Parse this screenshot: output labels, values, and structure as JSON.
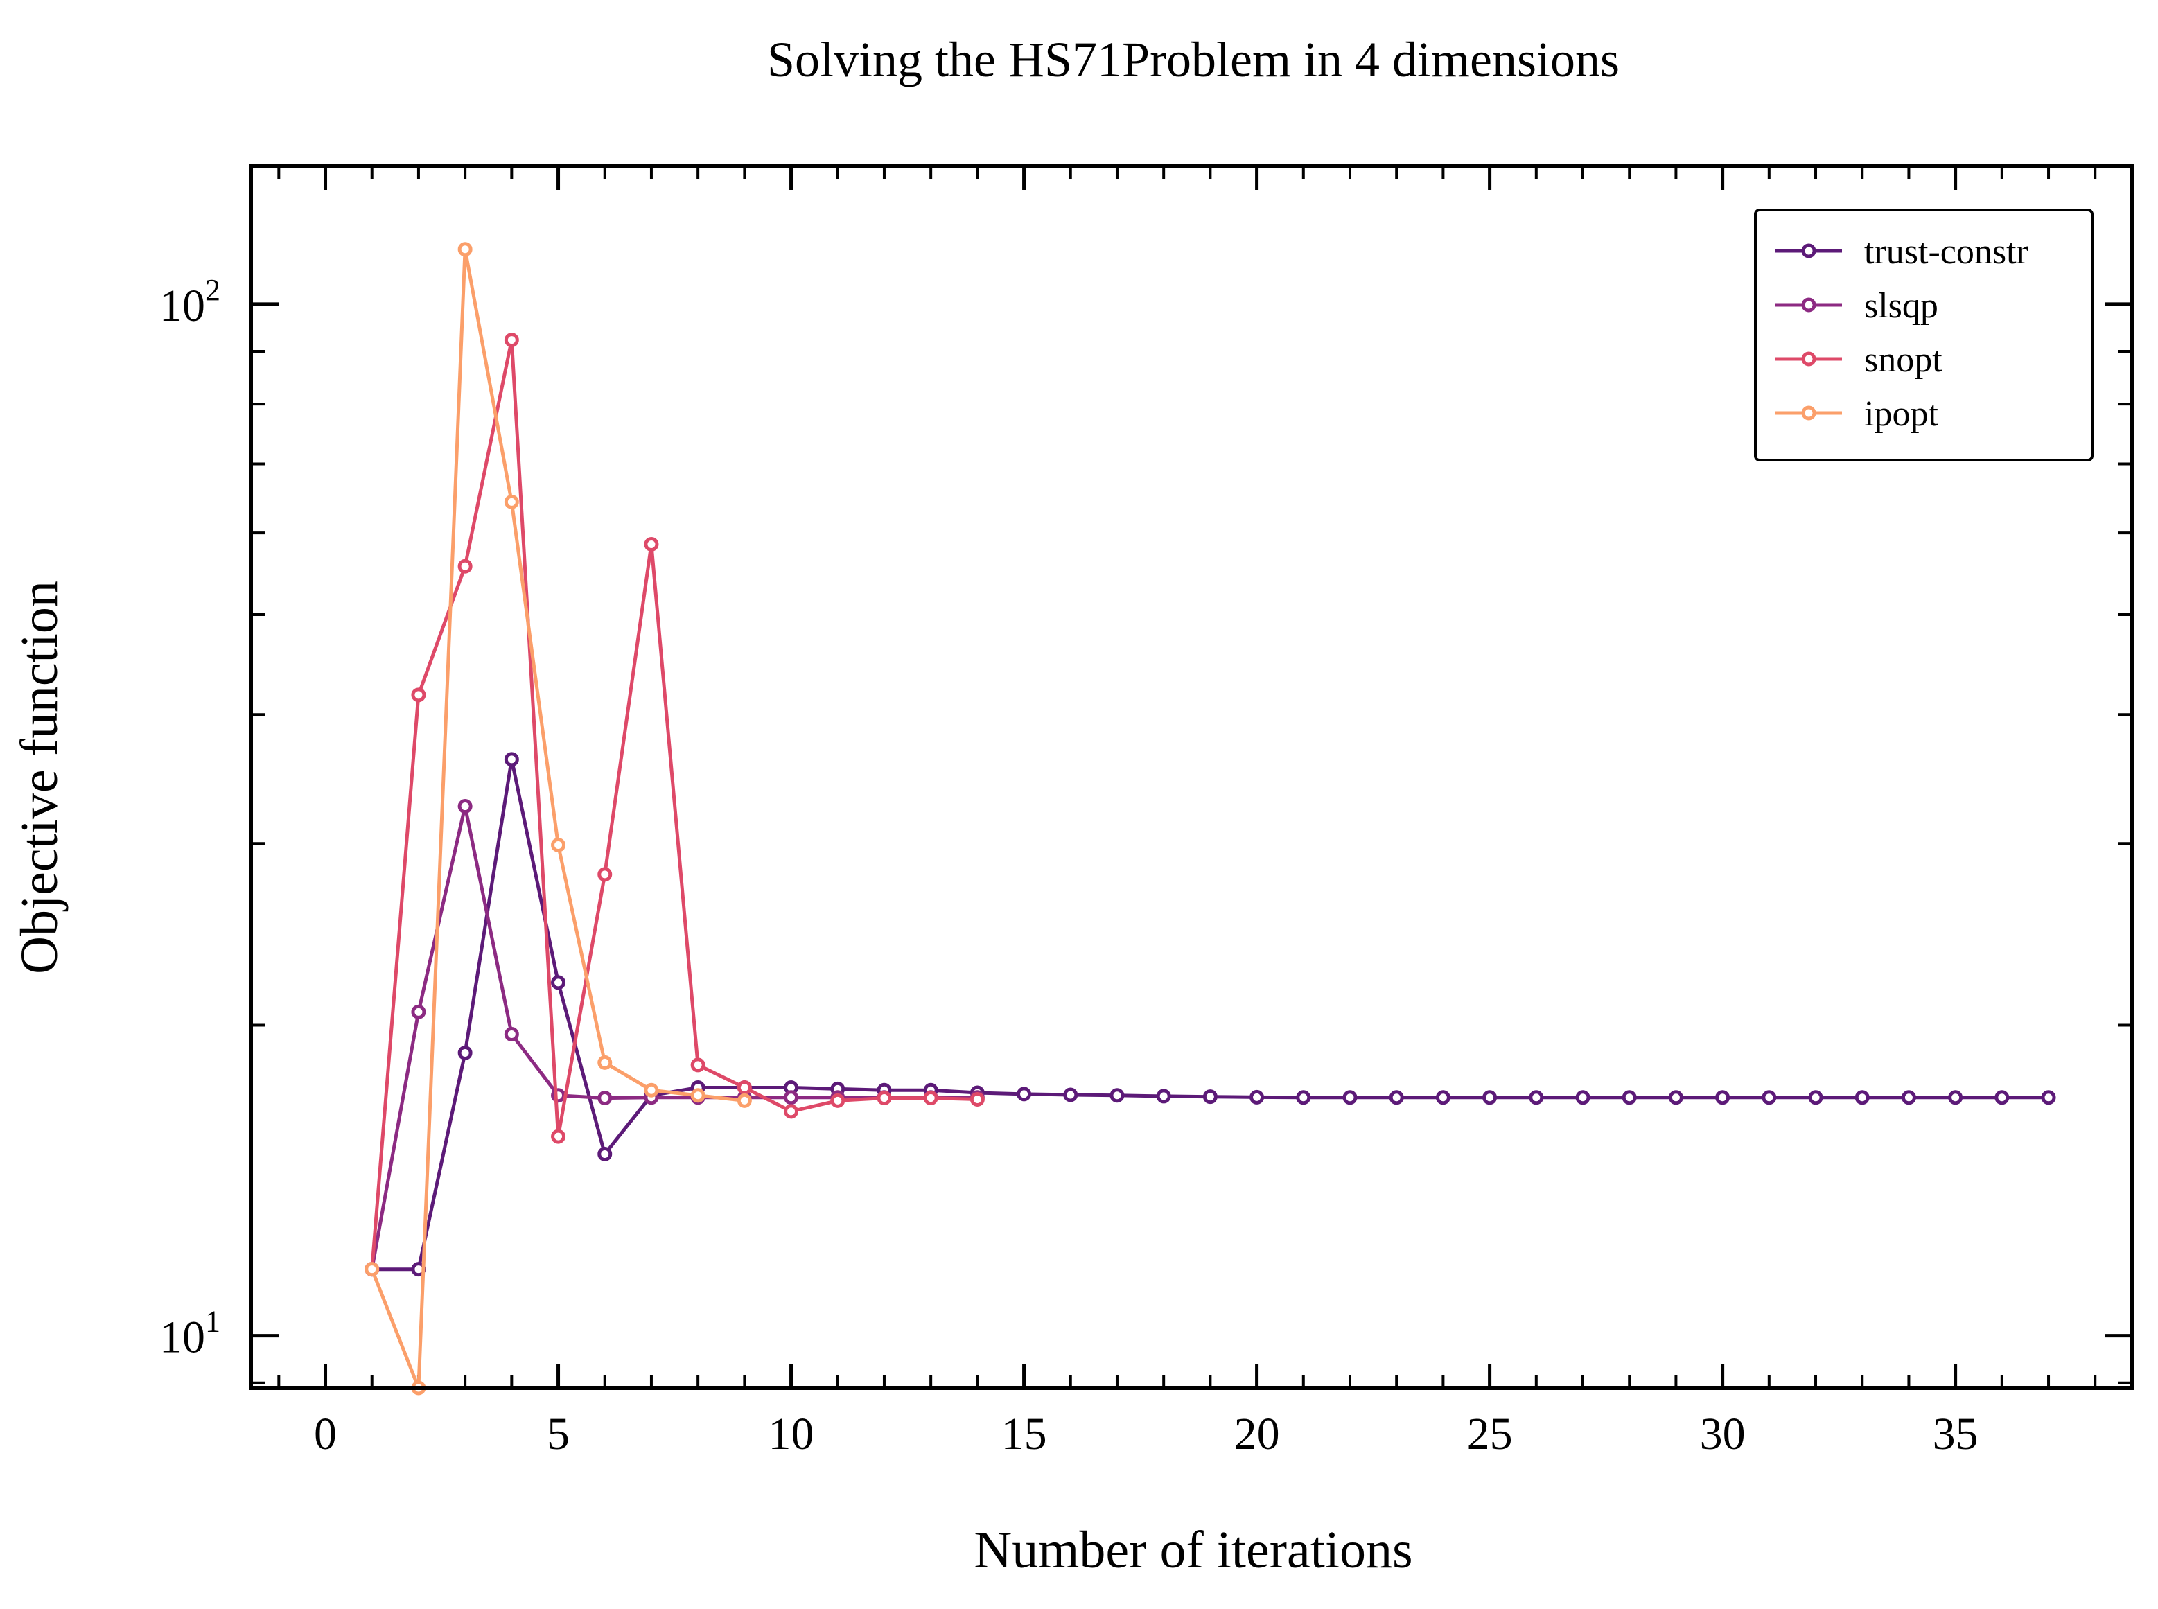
{
  "chart_data": {
    "type": "line",
    "title": "Solving the HS71Problem in 4 dimensions",
    "xlabel": "Number of iterations",
    "ylabel": "Objective function",
    "xlim": [
      -1.6,
      38.8
    ],
    "ylim": [
      8.9,
      136
    ],
    "yscale": "log",
    "xticks": [
      0,
      5,
      10,
      15,
      20,
      25,
      30,
      35
    ],
    "xtick_labels": [
      "0",
      "5",
      "10",
      "15",
      "20",
      "25",
      "30",
      "35"
    ],
    "yticks": [
      {
        "value": 10,
        "base": "10",
        "exp": "1"
      },
      {
        "value": 100,
        "base": "10",
        "exp": "2"
      }
    ],
    "grid": false,
    "legend_position": "top-right",
    "series": [
      {
        "name": "trust-constr",
        "color": "#5c1a78",
        "x": [
          1,
          2,
          3,
          4,
          5,
          6,
          7,
          8,
          9,
          10,
          11,
          12,
          13,
          14,
          15,
          16,
          17,
          18,
          19,
          20,
          21,
          22,
          23,
          24,
          25,
          26,
          27,
          28,
          29,
          30,
          31,
          32,
          33,
          34,
          35,
          36,
          37
        ],
        "y": [
          11.6,
          11.6,
          18.8,
          36.2,
          22.0,
          15.0,
          17.1,
          17.4,
          17.4,
          17.4,
          17.35,
          17.3,
          17.3,
          17.2,
          17.15,
          17.12,
          17.1,
          17.07,
          17.05,
          17.03,
          17.02,
          17.02,
          17.02,
          17.02,
          17.02,
          17.02,
          17.02,
          17.02,
          17.02,
          17.02,
          17.02,
          17.02,
          17.02,
          17.02,
          17.02,
          17.02,
          17.02
        ]
      },
      {
        "name": "slsqp",
        "color": "#8c2a82",
        "x": [
          1,
          2,
          3,
          4,
          5,
          6,
          7,
          8,
          9,
          10,
          11,
          12,
          13,
          14
        ],
        "y": [
          11.6,
          20.6,
          32.6,
          19.6,
          17.1,
          17.0,
          17.02,
          17.02,
          17.02,
          17.02,
          17.02,
          17.02,
          17.02,
          17.02
        ]
      },
      {
        "name": "snopt",
        "color": "#de4968",
        "x": [
          1,
          2,
          3,
          4,
          5,
          6,
          7,
          8,
          9,
          10,
          11,
          12,
          13,
          14
        ],
        "y": [
          11.6,
          41.8,
          55.7,
          92.3,
          15.6,
          28.0,
          58.5,
          18.3,
          17.4,
          16.5,
          16.9,
          17.0,
          17.0,
          16.95
        ]
      },
      {
        "name": "ipopt",
        "color": "#fb9f6a",
        "x": [
          1,
          2,
          3,
          4,
          5,
          6,
          7,
          8,
          9
        ],
        "y": [
          11.6,
          8.9,
          113,
          64.3,
          29.9,
          18.4,
          17.3,
          17.1,
          16.9
        ]
      }
    ]
  }
}
